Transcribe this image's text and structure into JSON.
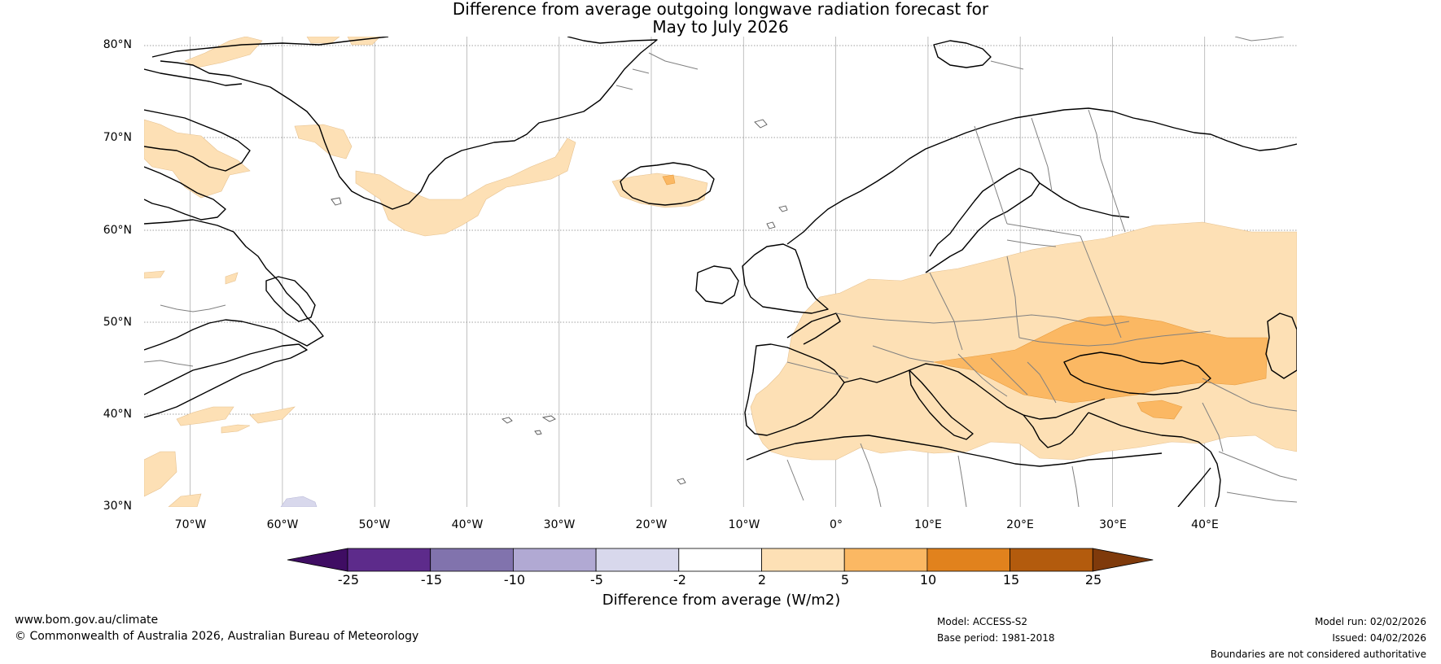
{
  "title": {
    "line1": "Difference from average outgoing longwave radiation forecast for",
    "line2": "May to July 2026"
  },
  "map": {
    "latitude_labels": [
      "80°N",
      "70°N",
      "60°N",
      "50°N",
      "40°N",
      "30°N"
    ],
    "longitude_labels": [
      "70°W",
      "60°W",
      "50°W",
      "40°W",
      "30°W",
      "20°W",
      "10°W",
      "0°",
      "10°E",
      "20°E",
      "30°E",
      "40°E"
    ],
    "longitude_range": [
      -75,
      50
    ],
    "latitude_range": [
      30,
      81
    ],
    "colors": {
      "coastline": "#000000",
      "borders": "#808080",
      "gridlines": "#9a9a9a",
      "anomaly_2_5": "#fde0b5",
      "anomaly_5_10": "#fbb863",
      "anomaly_neg_2_neg_5": "#d8d8ec"
    }
  },
  "colorbar": {
    "ticks": [
      "-25",
      "-15",
      "-10",
      "-5",
      "-2",
      "2",
      "5",
      "10",
      "15",
      "25"
    ],
    "label": "Difference from average (W/m2)",
    "colors": [
      "#3f0d63",
      "#5d2b8b",
      "#8173ad",
      "#b1a9d3",
      "#d8d8ec",
      "#ffffff",
      "#fde0b5",
      "#fbb863",
      "#e1821d",
      "#b35b0d",
      "#7f3a0b"
    ]
  },
  "footer": {
    "website": "www.bom.gov.au/climate",
    "copyright": "© Commonwealth of Australia 2026, Australian Bureau of Meteorology",
    "model": "Model: ACCESS-S2",
    "base_period": "Base period: 1981-2018",
    "model_run": "Model run: 02/02/2026",
    "issued": "Issued: 04/02/2026",
    "disclaimer": "Boundaries are not considered authoritative"
  }
}
